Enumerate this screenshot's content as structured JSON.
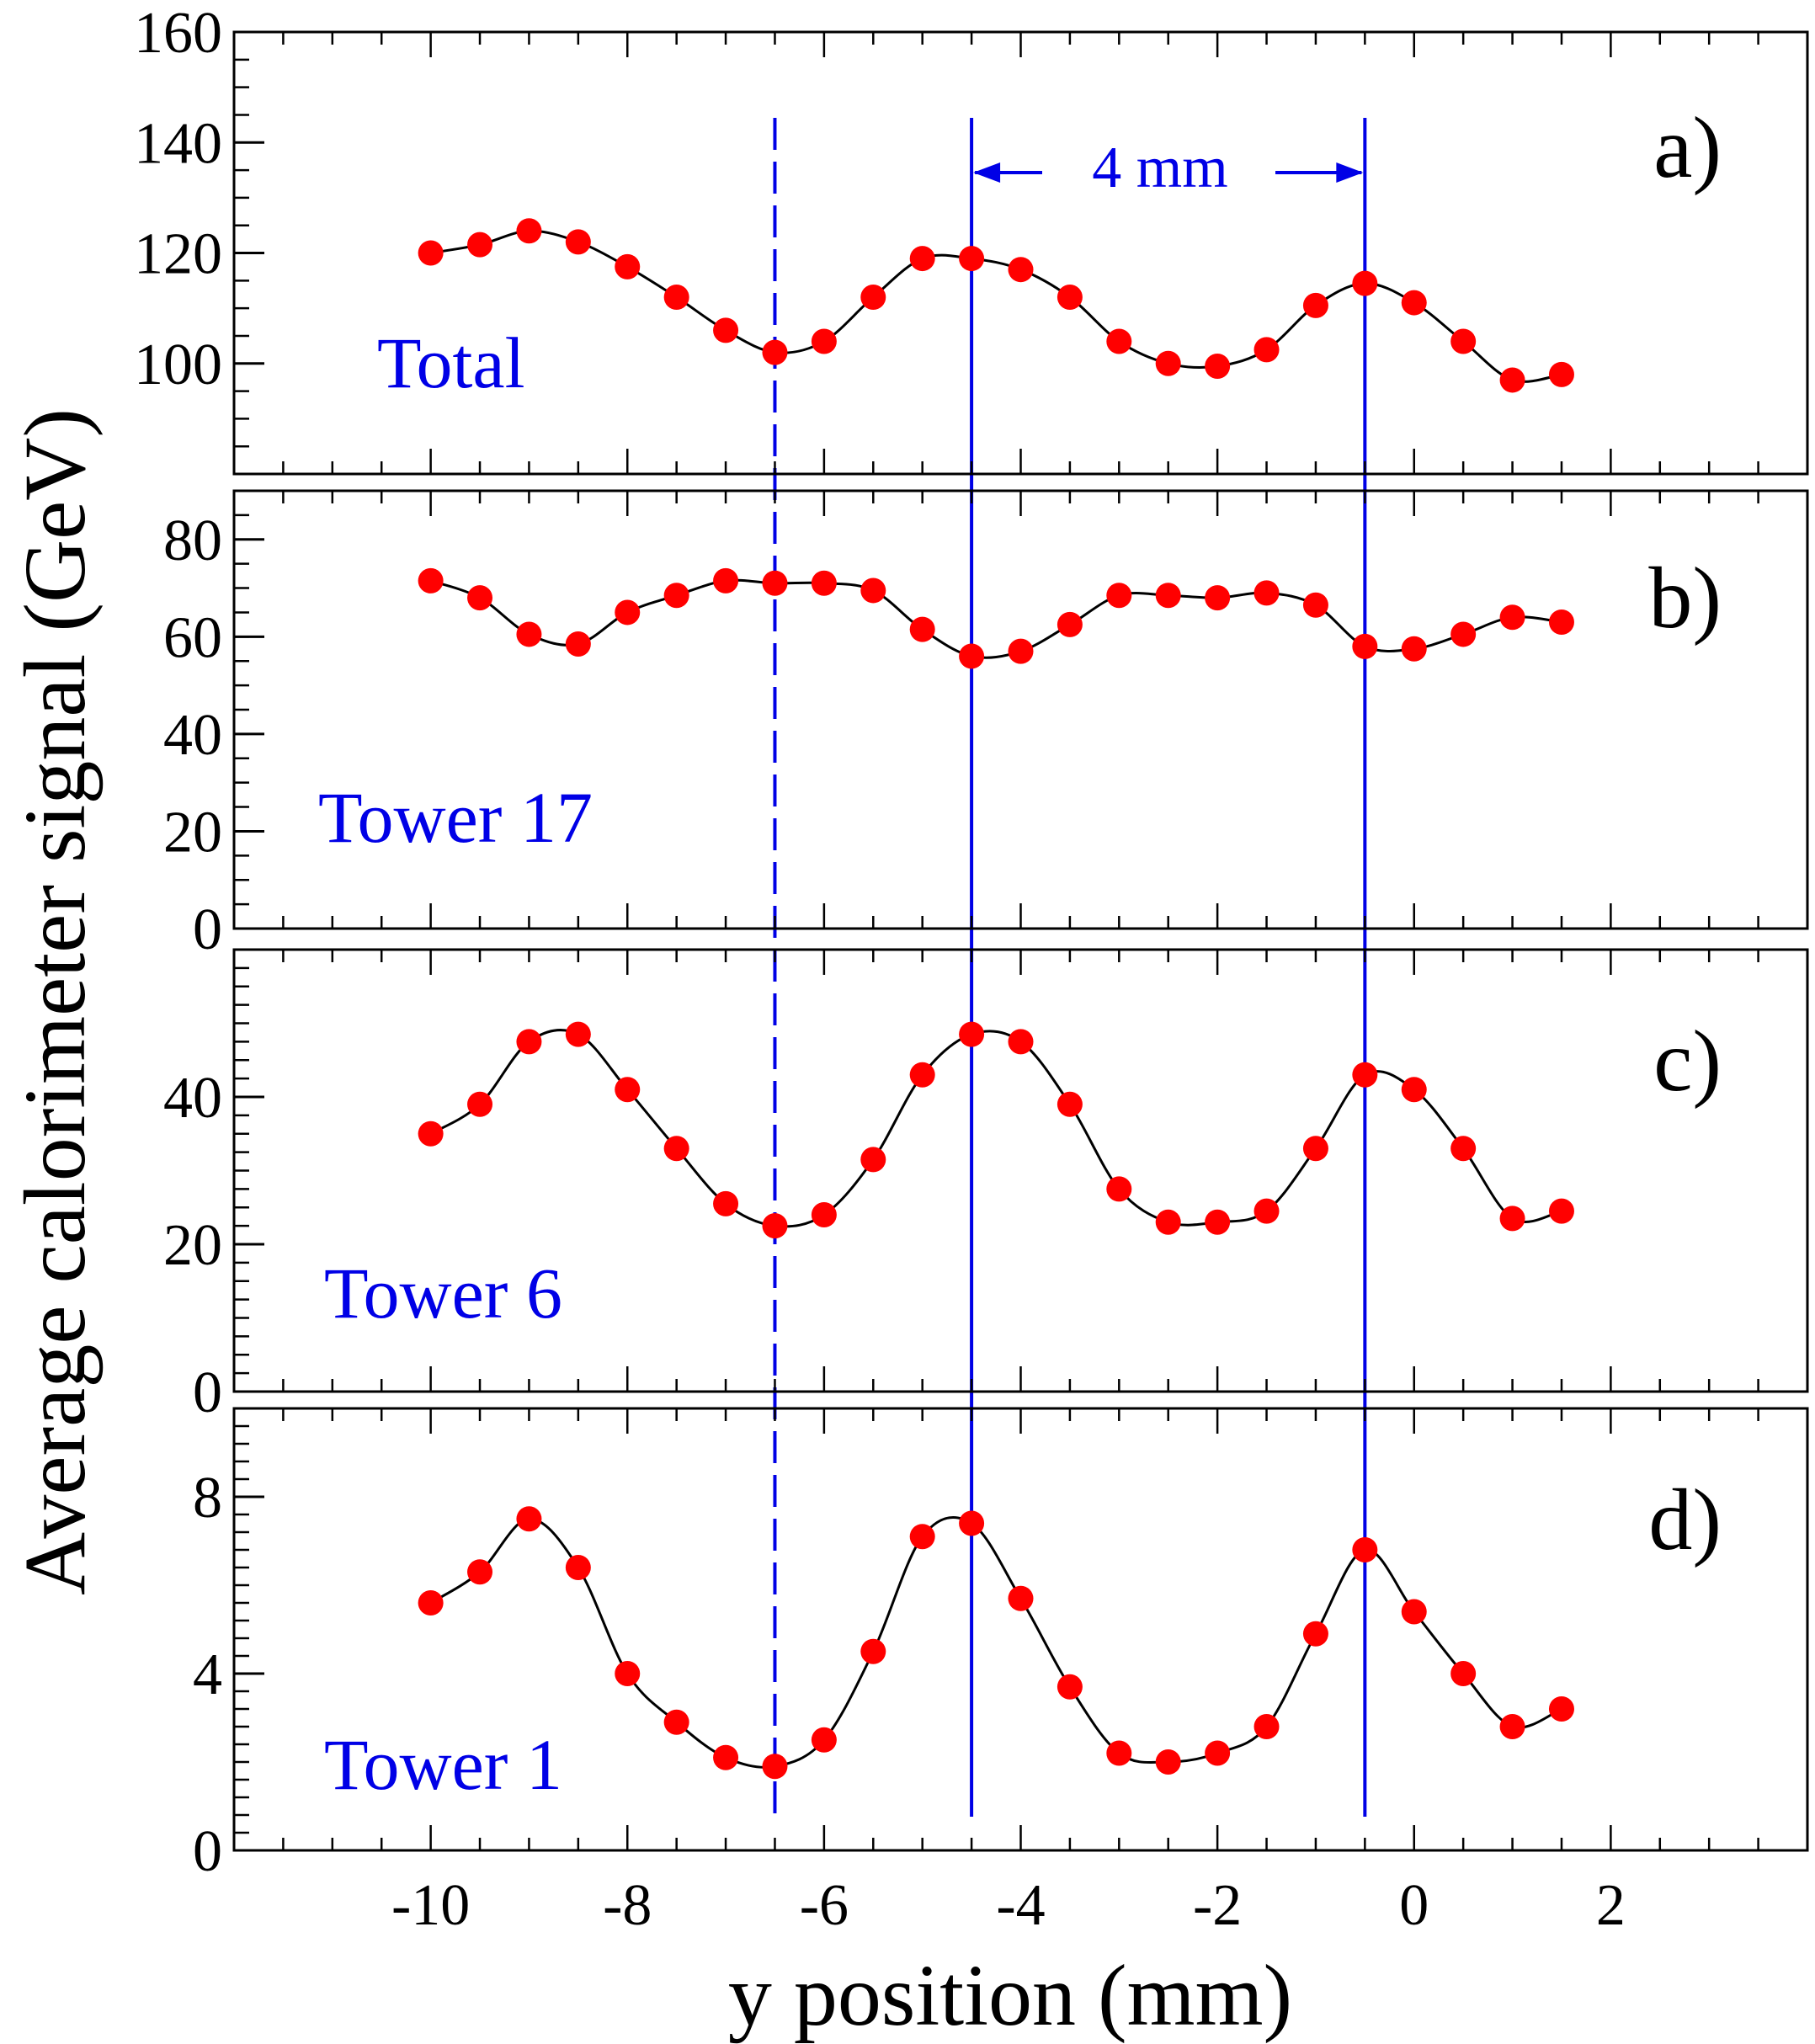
{
  "figure": {
    "ylabel": "Average calorimeter signal (GeV)",
    "xlabel": "y position (mm)",
    "xlim": [
      -12,
      4
    ],
    "xticks": [
      -10,
      -8,
      -6,
      -4,
      -2,
      0,
      2
    ],
    "marker_color": "#ff0000",
    "line_color": "#000000",
    "ref_line_color": "#0000e6",
    "annotation": "4 mm"
  },
  "chart_data": [
    {
      "type": "scatter",
      "panel": "a)",
      "series_label": "Total",
      "ylim": [
        80,
        160
      ],
      "yticks": [
        100,
        120,
        140,
        160
      ],
      "x": [
        -10,
        -9.5,
        -9,
        -8.5,
        -8,
        -7.5,
        -7,
        -6.5,
        -6,
        -5.5,
        -5,
        -4.5,
        -4,
        -3.5,
        -3,
        -2.5,
        -2,
        -1.5,
        -1,
        -0.5,
        0,
        0.5,
        1,
        1.5
      ],
      "y": [
        120,
        121.5,
        124,
        122,
        117.5,
        112,
        106,
        102,
        104,
        112,
        119,
        119,
        117,
        112,
        104,
        100,
        99.5,
        102.5,
        110.5,
        114.5,
        111,
        104,
        97,
        98
      ]
    },
    {
      "type": "scatter",
      "panel": "b)",
      "series_label": "Tower 17",
      "ylim": [
        0,
        90
      ],
      "yticks": [
        0,
        20,
        40,
        60,
        80
      ],
      "x": [
        -10,
        -9.5,
        -9,
        -8.5,
        -8,
        -7.5,
        -7,
        -6.5,
        -6,
        -5.5,
        -5,
        -4.5,
        -4,
        -3.5,
        -3,
        -2.5,
        -2,
        -1.5,
        -1,
        -0.5,
        0,
        0.5,
        1,
        1.5
      ],
      "y": [
        71.5,
        68,
        60.5,
        58.5,
        65,
        68.5,
        71.5,
        71,
        71,
        69.5,
        61.5,
        56,
        57,
        62.5,
        68.5,
        68.5,
        68,
        69,
        66.5,
        58,
        57.5,
        60.5,
        64,
        63
      ]
    },
    {
      "type": "scatter",
      "panel": "c)",
      "series_label": "Tower 6",
      "ylim": [
        0,
        60
      ],
      "yticks": [
        0,
        20,
        40
      ],
      "x": [
        -10,
        -9.5,
        -9,
        -8.5,
        -8,
        -7.5,
        -7,
        -6.5,
        -6,
        -5.5,
        -5,
        -4.5,
        -4,
        -3.5,
        -3,
        -2.5,
        -2,
        -1.5,
        -1,
        -0.5,
        0,
        0.5,
        1,
        1.5
      ],
      "y": [
        35,
        39,
        47.5,
        48.5,
        41,
        33,
        25.5,
        22.5,
        24,
        31.5,
        43,
        48.5,
        47.5,
        39,
        27.5,
        23,
        23,
        24.5,
        33,
        43,
        41,
        33,
        23.5,
        24.5
      ]
    },
    {
      "type": "scatter",
      "panel": "d)",
      "series_label": "Tower 1",
      "ylim": [
        0,
        10
      ],
      "yticks": [
        0,
        4,
        8
      ],
      "x": [
        -10,
        -9.5,
        -9,
        -8.5,
        -8,
        -7.5,
        -7,
        -6.5,
        -6,
        -5.5,
        -5,
        -4.5,
        -4,
        -3.5,
        -3,
        -2.5,
        -2,
        -1.5,
        -1,
        -0.5,
        0,
        0.5,
        1,
        1.5
      ],
      "y": [
        5.6,
        6.3,
        7.5,
        6.4,
        4,
        2.9,
        2.1,
        1.9,
        2.5,
        4.5,
        7.1,
        7.4,
        5.7,
        3.7,
        2.2,
        2,
        2.2,
        2.8,
        4.9,
        6.8,
        5.4,
        4,
        2.8,
        3.2
      ]
    }
  ]
}
